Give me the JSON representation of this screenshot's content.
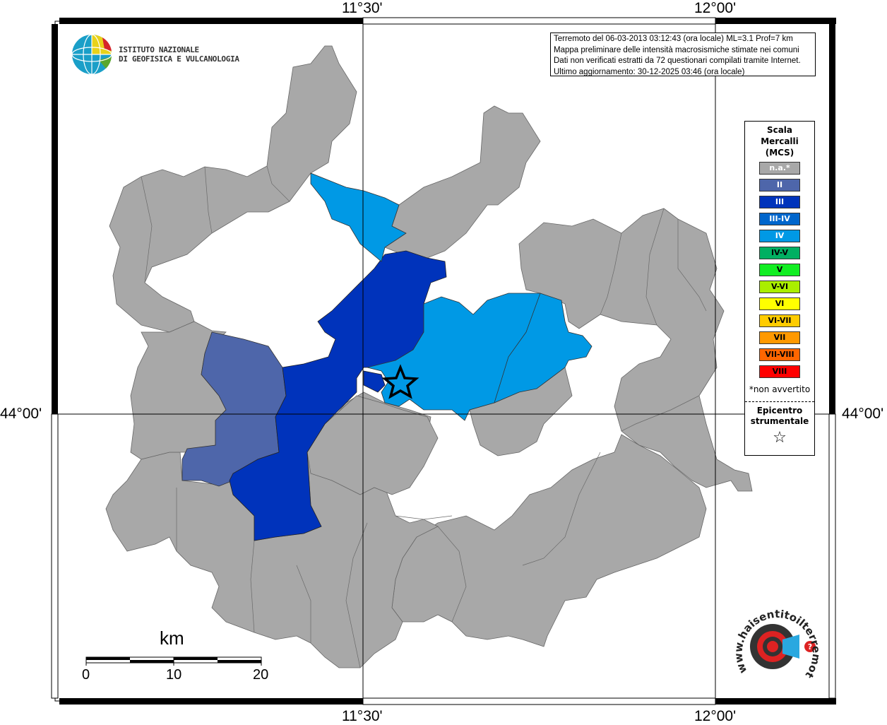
{
  "coords": {
    "top_left": "11°30'",
    "top_right": "12°00'",
    "bottom_left": "11°30'",
    "bottom_right": "12°00'",
    "left": "44°00'",
    "right": "44°00'"
  },
  "logo": {
    "line1": "ISTITUTO NAZIONALE",
    "line2": "DI GEOFISICA E VULCANOLOGIA"
  },
  "info": {
    "line1": "Terremoto del 06-03-2013 03:12:43 (ora locale) ML=3.1 Prof=7 km",
    "line2": "Mappa preliminare delle intensità macrosismiche stimate nei comuni",
    "line3": "Dati non verificati estratti da 72 questionari compilati tramite Internet.",
    "line4": "Ultimo aggiornamento: 30-12-2025 03:46 (ora locale)"
  },
  "legend": {
    "title1": "Scala",
    "title2": "Mercalli",
    "title3": "(MCS)",
    "items": [
      {
        "label": "n.a.*",
        "color": "#a8a8a8"
      },
      {
        "label": "II",
        "color": "#4e66aa"
      },
      {
        "label": "III",
        "color": "#0033bb"
      },
      {
        "label": "III-IV",
        "color": "#0066cc"
      },
      {
        "label": "IV",
        "color": "#0099e5"
      },
      {
        "label": "IV-V",
        "color": "#00b062"
      },
      {
        "label": "V",
        "color": "#11ee22"
      },
      {
        "label": "V-VI",
        "color": "#aaee00"
      },
      {
        "label": "VI",
        "color": "#ffff00"
      },
      {
        "label": "VI-VII",
        "color": "#ffcc00"
      },
      {
        "label": "VII",
        "color": "#ff9900"
      },
      {
        "label": "VII-VIII",
        "color": "#ff6600"
      },
      {
        "label": "VIII",
        "color": "#ff0000"
      }
    ],
    "not_felt": "*non avvertito",
    "epicenter1": "Epicentro",
    "epicenter2": "strumentale"
  },
  "scale_bar": {
    "unit": "km",
    "ticks": [
      "0",
      "10",
      "20"
    ]
  },
  "watermark": {
    "text": "www.haisentitoilterremoto.it"
  },
  "colors": {
    "na": "#a8a8a8",
    "II": "#4e66aa",
    "III": "#0033bb",
    "IV": "#0099e5"
  }
}
